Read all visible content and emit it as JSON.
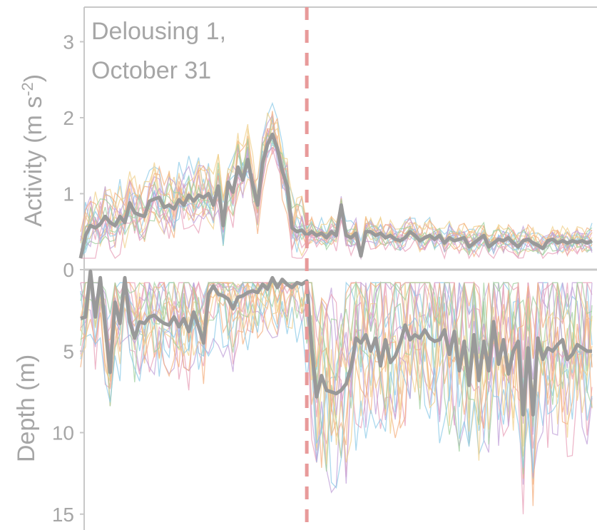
{
  "colors": {
    "axis": "#c8c8c8",
    "text": "#a6a6a6",
    "mean": "#999999",
    "event_line": "#e89a9a",
    "individual": [
      "#8ecbe8",
      "#e8a0b8",
      "#f0d08c",
      "#c0a0d8",
      "#f4b080",
      "#a0d0a0"
    ]
  },
  "chart_data": [
    {
      "type": "line",
      "panel": "activity",
      "title_lines": [
        "Delousing 1,",
        "October 31"
      ],
      "ylabel": "Activity (m s",
      "ylabel_sup": "-2",
      "ylabel_close": ")",
      "ylim": [
        0,
        3.5
      ],
      "yticks": [
        0,
        1,
        2,
        3
      ],
      "grid": false,
      "x": [
        0,
        1,
        2,
        3,
        4,
        5,
        6,
        7,
        8,
        9,
        10,
        11,
        12,
        13,
        14,
        15,
        16,
        17,
        18,
        19,
        20,
        21,
        22,
        23,
        24,
        25,
        26,
        27,
        28,
        29,
        30,
        31,
        32,
        33,
        34,
        35,
        36,
        37,
        38,
        39,
        40,
        41,
        42,
        43,
        44,
        45,
        46,
        47,
        48,
        49,
        50,
        51,
        52,
        53,
        54,
        55,
        56,
        57,
        58,
        59,
        60,
        61,
        62,
        63,
        64,
        65,
        66,
        67,
        68,
        69,
        70,
        71,
        72,
        73,
        74,
        75,
        76,
        77,
        78,
        79,
        80,
        81,
        82,
        83,
        84,
        85,
        86,
        87,
        88,
        89,
        90,
        91,
        92,
        93,
        94,
        95,
        96,
        97,
        98,
        99,
        100,
        101,
        102,
        103,
        104
      ],
      "event_x": 46,
      "mean": [
        0.15,
        0.45,
        0.58,
        0.55,
        0.6,
        0.7,
        0.62,
        0.58,
        0.7,
        0.62,
        0.88,
        0.75,
        0.72,
        0.7,
        0.9,
        0.93,
        0.95,
        0.82,
        0.85,
        0.8,
        0.92,
        0.85,
        0.98,
        0.9,
        0.98,
        0.95,
        1.0,
        0.85,
        1.1,
        0.58,
        1.15,
        1.02,
        1.35,
        1.18,
        1.45,
        1.12,
        0.85,
        1.4,
        1.65,
        1.78,
        1.6,
        1.3,
        1.1,
        0.55,
        0.5,
        0.52,
        0.45,
        0.5,
        0.45,
        0.48,
        0.42,
        0.5,
        0.45,
        0.85,
        0.45,
        0.42,
        0.48,
        0.18,
        0.5,
        0.5,
        0.45,
        0.48,
        0.42,
        0.45,
        0.4,
        0.38,
        0.42,
        0.5,
        0.45,
        0.38,
        0.42,
        0.45,
        0.4,
        0.45,
        0.35,
        0.42,
        0.38,
        0.4,
        0.42,
        0.3,
        0.35,
        0.4,
        0.45,
        0.3,
        0.35,
        0.4,
        0.38,
        0.42,
        0.35,
        0.3,
        0.38,
        0.4,
        0.35,
        0.32,
        0.28,
        0.38,
        0.4,
        0.35,
        0.38,
        0.35,
        0.38,
        0.36,
        0.38,
        0.35,
        0.38
      ]
    },
    {
      "type": "line",
      "panel": "depth",
      "ylabel": "Depth (m)",
      "ylim": [
        15,
        0
      ],
      "yticks": [
        5,
        10,
        15
      ],
      "grid": false,
      "event_x": 46,
      "mean": [
        3.0,
        2.9,
        0.1,
        2.9,
        0.5,
        3.5,
        6.3,
        2.0,
        3.3,
        0.5,
        3.2,
        4.2,
        3.2,
        3.3,
        2.9,
        2.8,
        3.1,
        3.3,
        3.4,
        2.9,
        3.5,
        3.0,
        3.8,
        2.6,
        3.5,
        4.5,
        1.5,
        1.0,
        1.5,
        1.6,
        1.8,
        2.4,
        1.7,
        1.6,
        1.4,
        1.3,
        1.4,
        0.9,
        1.2,
        0.5,
        1.1,
        0.6,
        0.9,
        1.1,
        0.8,
        0.9,
        0.7,
        4.8,
        7.8,
        6.5,
        7.4,
        7.5,
        7.6,
        7.4,
        7.0,
        6.0,
        4.2,
        4.5,
        4.0,
        5.0,
        4.2,
        5.9,
        4.3,
        5.7,
        5.3,
        4.5,
        3.4,
        4.3,
        4.0,
        4.2,
        3.7,
        4.2,
        4.4,
        4.3,
        3.7,
        5.2,
        3.8,
        6.2,
        4.4,
        7.1,
        4.0,
        6.8,
        4.4,
        6.2,
        3.2,
        5.8,
        4.3,
        6.4,
        5.0,
        4.4,
        8.9,
        4.8,
        8.9,
        4.2,
        5.5,
        4.8,
        5.0,
        4.6,
        4.3,
        5.5,
        5.2,
        4.6,
        4.8,
        5.0,
        5.0
      ]
    }
  ],
  "labels": {
    "activity_ticks": [
      "0",
      "1",
      "2",
      "3"
    ],
    "depth_ticks": [
      "5",
      "10",
      "15"
    ]
  }
}
